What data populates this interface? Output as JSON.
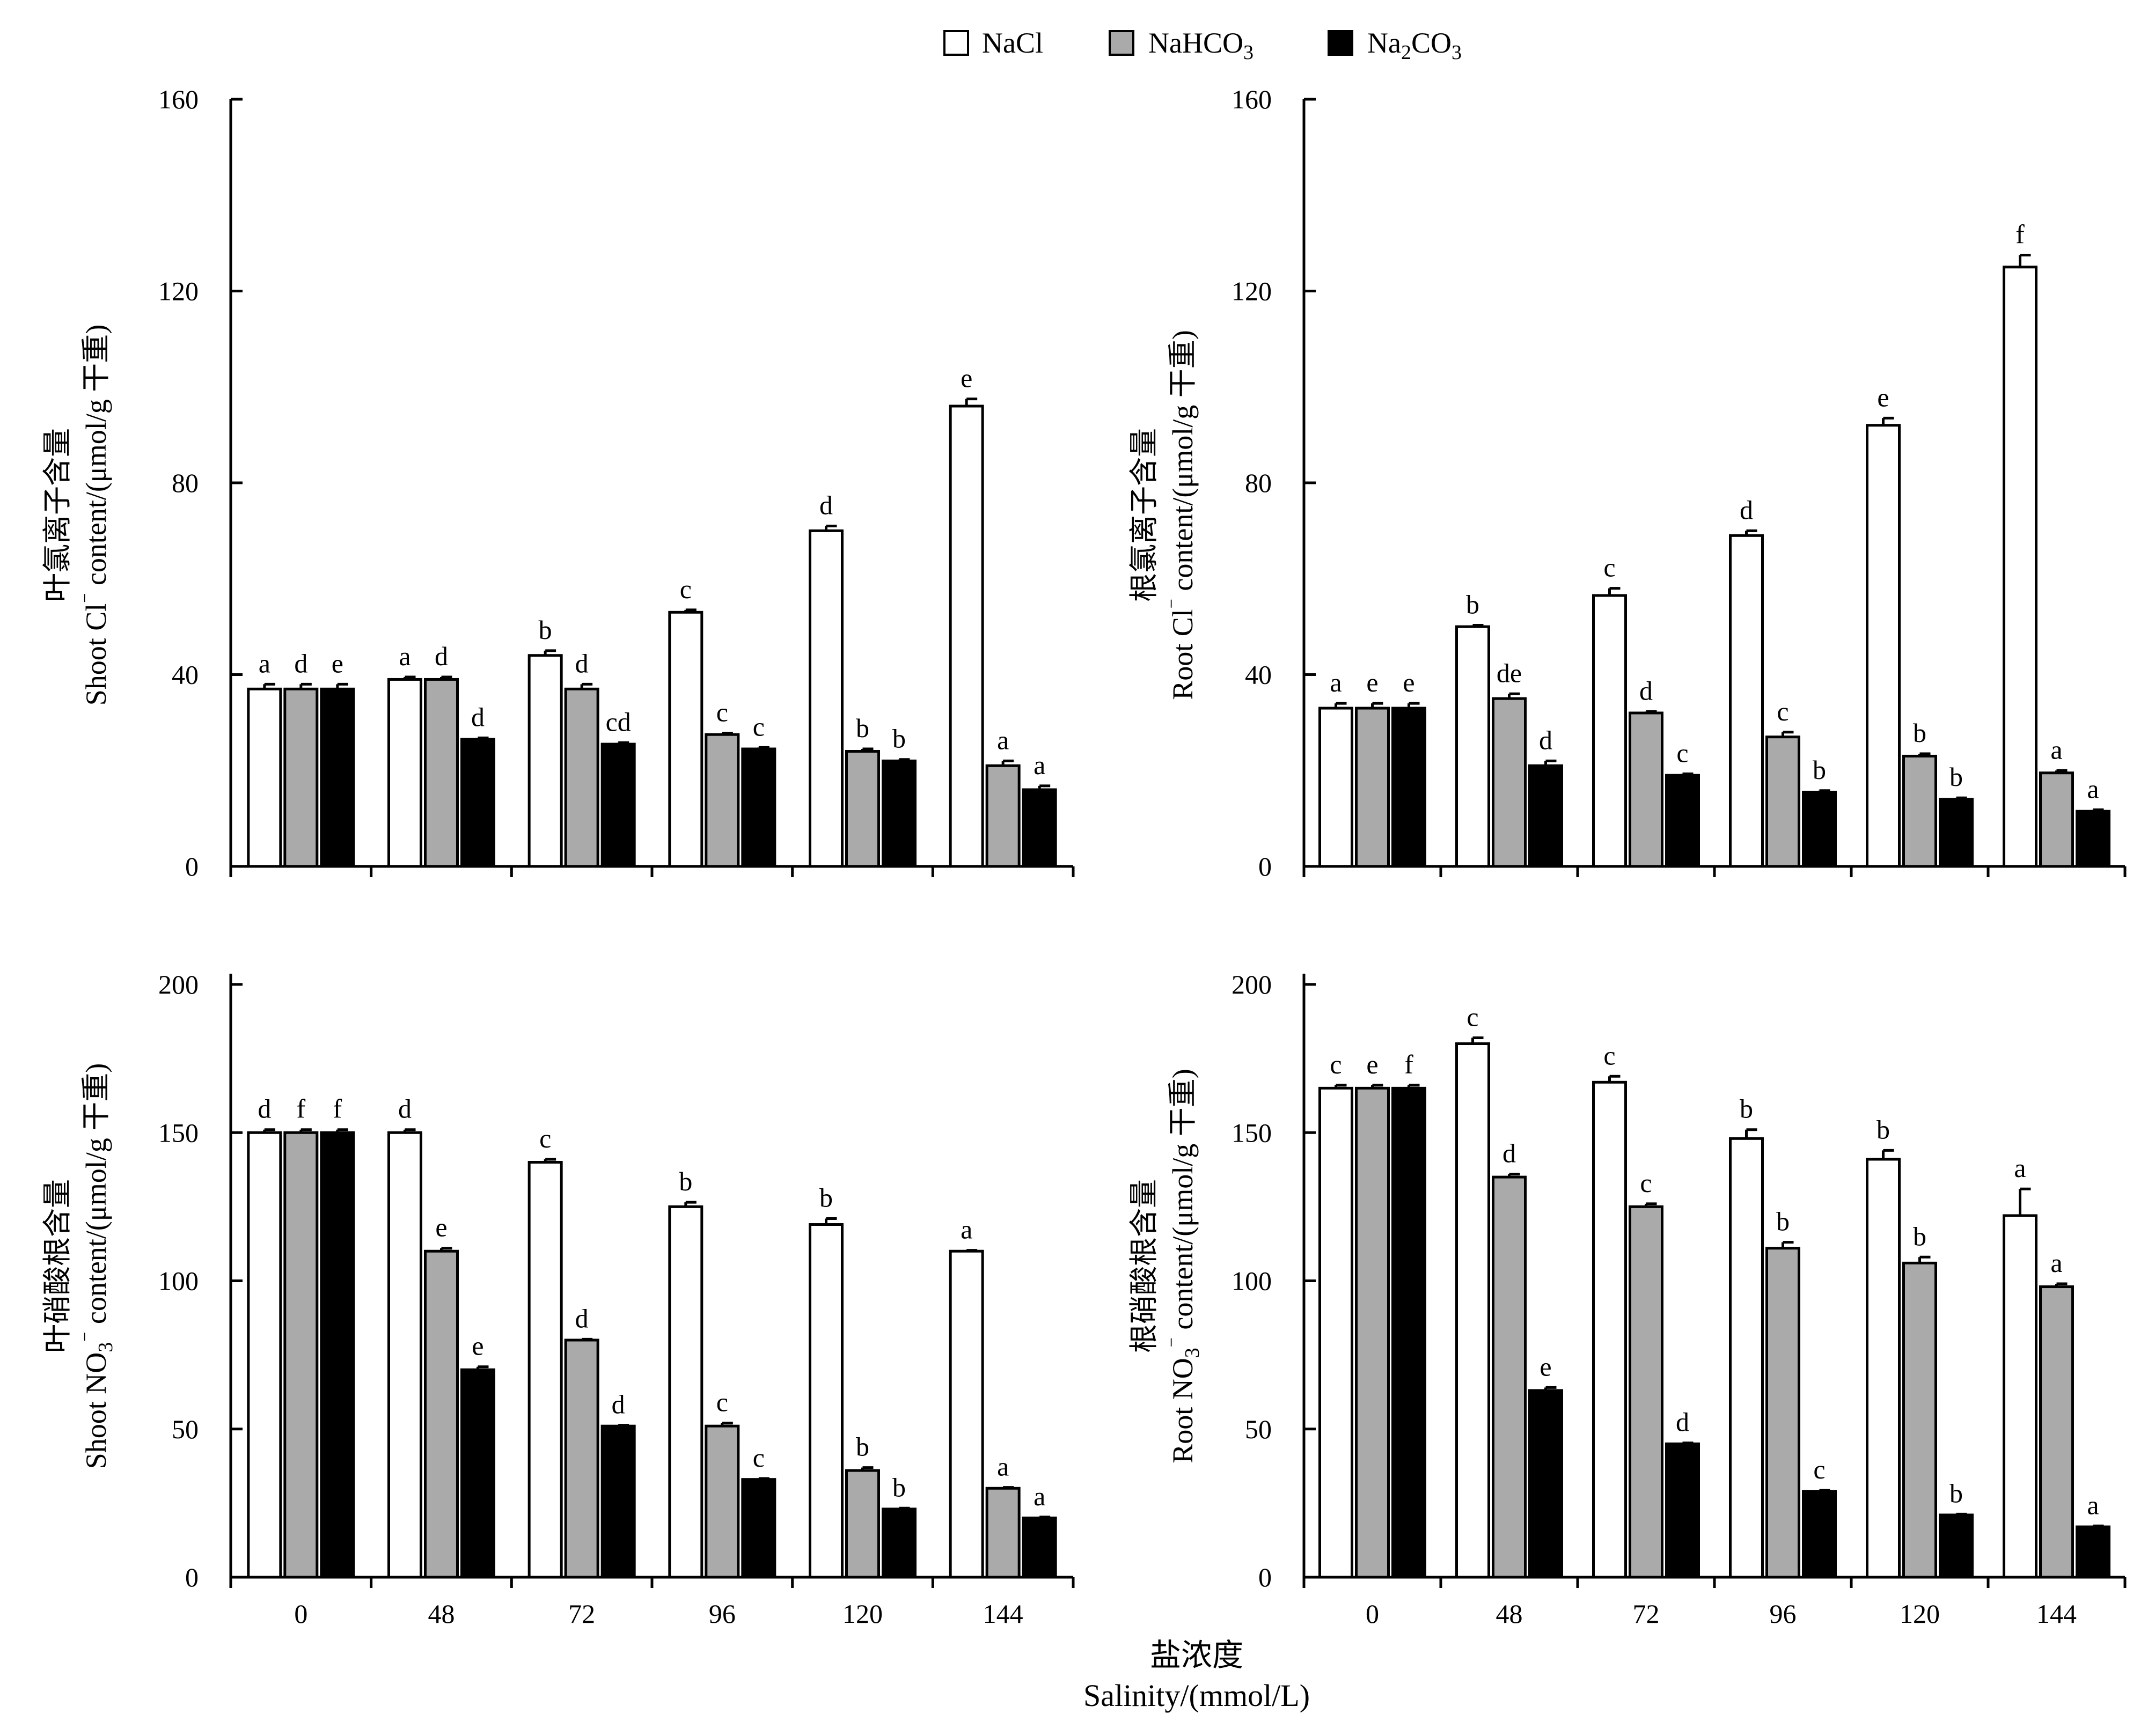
{
  "legend": [
    {
      "label_main": "NaCl",
      "label_sub": "",
      "label_tail": "",
      "color": "#ffffff"
    },
    {
      "label_main": "NaHCO",
      "label_sub": "3",
      "label_tail": "",
      "color": "#aaaaaa"
    },
    {
      "label_main": "Na",
      "label_sub": "2",
      "label_tail": "CO",
      "label_sub2": "3",
      "color": "#000000"
    }
  ],
  "x_title": {
    "zh": "盐浓度",
    "en": "Salinity/(mmol/L)"
  },
  "chart_data": [
    {
      "type": "bar",
      "panel": "top-left",
      "ylabel_zh": "叶氯离子含量",
      "ylabel_en_parts": [
        "Shoot Cl",
        "⁻",
        " content/(μmol/g 干重)"
      ],
      "ylim": [
        0,
        160
      ],
      "yticks": [
        "0",
        "40",
        "80",
        "120",
        "160"
      ],
      "categories": [
        "0",
        "48",
        "72",
        "96",
        "120",
        "144"
      ],
      "series": [
        {
          "name": "NaCl",
          "values": [
            37,
            39,
            44,
            53,
            70,
            96
          ],
          "errors": [
            1,
            0.5,
            1,
            0.5,
            1,
            1.5
          ],
          "labels": [
            "a",
            "a",
            "b",
            "c",
            "d",
            "e"
          ]
        },
        {
          "name": "NaHCO3",
          "values": [
            37,
            39,
            37,
            27.5,
            24,
            21
          ],
          "errors": [
            1,
            0.5,
            1,
            0.3,
            0.5,
            1
          ],
          "labels": [
            "d",
            "d",
            "d",
            "c",
            "b",
            "a"
          ]
        },
        {
          "name": "Na2CO3",
          "values": [
            37,
            26.5,
            25.5,
            24.5,
            22,
            16
          ],
          "errors": [
            1,
            0.3,
            0.3,
            0.3,
            0.3,
            0.8
          ],
          "labels": [
            "e",
            "d",
            "cd",
            "c",
            "b",
            "a"
          ]
        }
      ]
    },
    {
      "type": "bar",
      "panel": "top-right",
      "ylabel_zh": "根氯离子含量",
      "ylabel_en_parts": [
        "Root  Cl",
        "⁻",
        " content/(μmol/g 干重)"
      ],
      "ylim": [
        0,
        160
      ],
      "yticks": [
        "0",
        "40",
        "80",
        "120",
        "160"
      ],
      "categories": [
        "0",
        "48",
        "72",
        "96",
        "120",
        "144"
      ],
      "series": [
        {
          "name": "NaCl",
          "values": [
            33,
            50,
            56.5,
            69,
            92,
            125
          ],
          "errors": [
            1,
            0.3,
            1.5,
            1,
            1.5,
            2.5
          ],
          "labels": [
            "a",
            "b",
            "c",
            "d",
            "e",
            "f"
          ]
        },
        {
          "name": "NaHCO3",
          "values": [
            33,
            35,
            32,
            27,
            23,
            19.5
          ],
          "errors": [
            1,
            1,
            0.3,
            1,
            0.5,
            0.5
          ],
          "labels": [
            "e",
            "de",
            "d",
            "c",
            "b",
            "a"
          ]
        },
        {
          "name": "Na2CO3",
          "values": [
            33,
            21,
            19,
            15.5,
            14,
            11.5
          ],
          "errors": [
            1,
            1,
            0.3,
            0.3,
            0.3,
            0.3
          ],
          "labels": [
            "e",
            "d",
            "c",
            "b",
            "b",
            "a"
          ]
        }
      ]
    },
    {
      "type": "bar",
      "panel": "bottom-left",
      "ylabel_zh": "叶硝酸根含量",
      "ylabel_en_parts": [
        "Shoot NO",
        "3",
        "⁻",
        " content/(μmol/g 干重)"
      ],
      "ylim": [
        0,
        200
      ],
      "yticks": [
        "0",
        "50",
        "100",
        "150",
        "200"
      ],
      "categories": [
        "0",
        "48",
        "72",
        "96",
        "120",
        "144"
      ],
      "series": [
        {
          "name": "NaCl",
          "values": [
            150,
            150,
            140,
            125,
            119,
            110
          ],
          "errors": [
            1,
            1,
            1,
            1.5,
            2,
            0.3
          ],
          "labels": [
            "d",
            "d",
            "c",
            "b",
            "b",
            "a"
          ]
        },
        {
          "name": "NaHCO3",
          "values": [
            150,
            110,
            80,
            51,
            36,
            30
          ],
          "errors": [
            1,
            1,
            0.3,
            1,
            1,
            0.3
          ],
          "labels": [
            "f",
            "e",
            "d",
            "c",
            "b",
            "a"
          ]
        },
        {
          "name": "Na2CO3",
          "values": [
            150,
            70,
            51,
            33,
            23,
            20
          ],
          "errors": [
            1,
            1,
            0.3,
            0.3,
            0.3,
            0.3
          ],
          "labels": [
            "f",
            "e",
            "d",
            "c",
            "b",
            "a"
          ]
        }
      ]
    },
    {
      "type": "bar",
      "panel": "bottom-right",
      "ylabel_zh": "根硝酸根含量",
      "ylabel_en_parts": [
        "Root NO",
        "3",
        "⁻",
        " content/(μmol/g 干重)"
      ],
      "ylim": [
        0,
        200
      ],
      "yticks": [
        "0",
        "50",
        "100",
        "150",
        "200"
      ],
      "categories": [
        "0",
        "48",
        "72",
        "96",
        "120",
        "144"
      ],
      "series": [
        {
          "name": "NaCl",
          "values": [
            165,
            180,
            167,
            148,
            141,
            122
          ],
          "errors": [
            1,
            2,
            2,
            3,
            3,
            9
          ],
          "labels": [
            "c",
            "c",
            "c",
            "b",
            "b",
            "a"
          ]
        },
        {
          "name": "NaHCO3",
          "values": [
            165,
            135,
            125,
            111,
            106,
            98
          ],
          "errors": [
            1,
            1,
            1,
            2,
            2,
            1
          ],
          "labels": [
            "e",
            "d",
            "c",
            "b",
            "b",
            "a"
          ]
        },
        {
          "name": "Na2CO3",
          "values": [
            165,
            63,
            45,
            29,
            21,
            17
          ],
          "errors": [
            1,
            1,
            0.3,
            0.3,
            0.3,
            0.3
          ],
          "labels": [
            "f",
            "e",
            "d",
            "c",
            "b",
            "a"
          ]
        }
      ]
    }
  ]
}
